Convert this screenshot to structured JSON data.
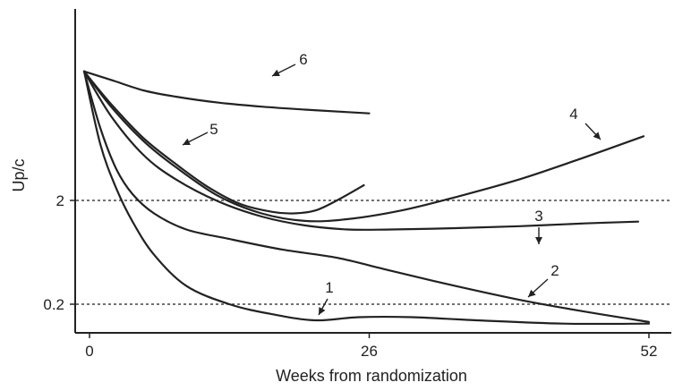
{
  "chart_data": {
    "type": "line",
    "title": "",
    "xlabel": "Weeks from randomization",
    "ylabel": "Up/c",
    "x_ticks": [
      {
        "value": 0,
        "label": "0"
      },
      {
        "value": 26,
        "label": "26"
      },
      {
        "value": 52,
        "label": "52"
      }
    ],
    "y_ticks": [
      {
        "value": 0.2,
        "label": "0.2"
      },
      {
        "value": 2,
        "label": "2"
      }
    ],
    "y_scale": "log",
    "xlim": [
      -1.5,
      53
    ],
    "ylim": [
      0.1,
      60
    ],
    "reference_lines": [
      {
        "y": 2,
        "style": "dotted"
      },
      {
        "y": 0.2,
        "style": "dotted"
      }
    ],
    "grid": false,
    "series": [
      {
        "name": "1",
        "x": [
          -0.5,
          1,
          2.5,
          4,
          6,
          9,
          13,
          17,
          21,
          25,
          30,
          36,
          44,
          52
        ],
        "y": [
          35,
          7,
          2.6,
          1.25,
          0.6,
          0.3,
          0.2,
          0.16,
          0.14,
          0.15,
          0.15,
          0.14,
          0.13,
          0.13
        ]
      },
      {
        "name": "2",
        "x": [
          -0.5,
          1,
          2.5,
          4,
          6,
          9,
          13,
          18,
          23,
          28,
          34,
          40,
          46,
          52
        ],
        "y": [
          35,
          10,
          4,
          2.3,
          1.5,
          1.05,
          0.85,
          0.67,
          0.56,
          0.42,
          0.3,
          0.22,
          0.17,
          0.135
        ]
      },
      {
        "name": "3",
        "x": [
          -0.5,
          2,
          5,
          8,
          12,
          16,
          20,
          24,
          28,
          34,
          40,
          46,
          51
        ],
        "y": [
          35,
          13,
          5.5,
          3.2,
          1.95,
          1.4,
          1.15,
          1.05,
          1.05,
          1.08,
          1.13,
          1.2,
          1.25
        ]
      },
      {
        "name": "4",
        "x": [
          -0.5,
          2,
          5,
          8,
          12,
          16,
          20,
          24,
          29,
          34,
          40,
          46,
          51.5
        ],
        "y": [
          35,
          16,
          7.5,
          4.2,
          2.2,
          1.5,
          1.27,
          1.32,
          1.6,
          2.15,
          3.2,
          5.2,
          8.3
        ]
      },
      {
        "name": "5",
        "x": [
          -0.5,
          2,
          5,
          8,
          11,
          14,
          17,
          19,
          21,
          23,
          25.5
        ],
        "y": [
          35,
          17,
          8,
          4.5,
          2.7,
          1.85,
          1.55,
          1.5,
          1.6,
          2.0,
          2.8
        ]
      },
      {
        "name": "6",
        "x": [
          -0.5,
          2,
          5,
          8,
          12,
          16,
          20,
          24,
          26
        ],
        "y": [
          35,
          29,
          23,
          20,
          17.5,
          16,
          15,
          14.2,
          13.8
        ]
      }
    ],
    "annotations": [
      {
        "text": "1",
        "points_to_series": "1"
      },
      {
        "text": "2",
        "points_to_series": "2"
      },
      {
        "text": "3",
        "points_to_series": "3"
      },
      {
        "text": "4",
        "points_to_series": "4"
      },
      {
        "text": "5",
        "points_to_series": "5"
      },
      {
        "text": "6",
        "points_to_series": "6"
      }
    ]
  }
}
